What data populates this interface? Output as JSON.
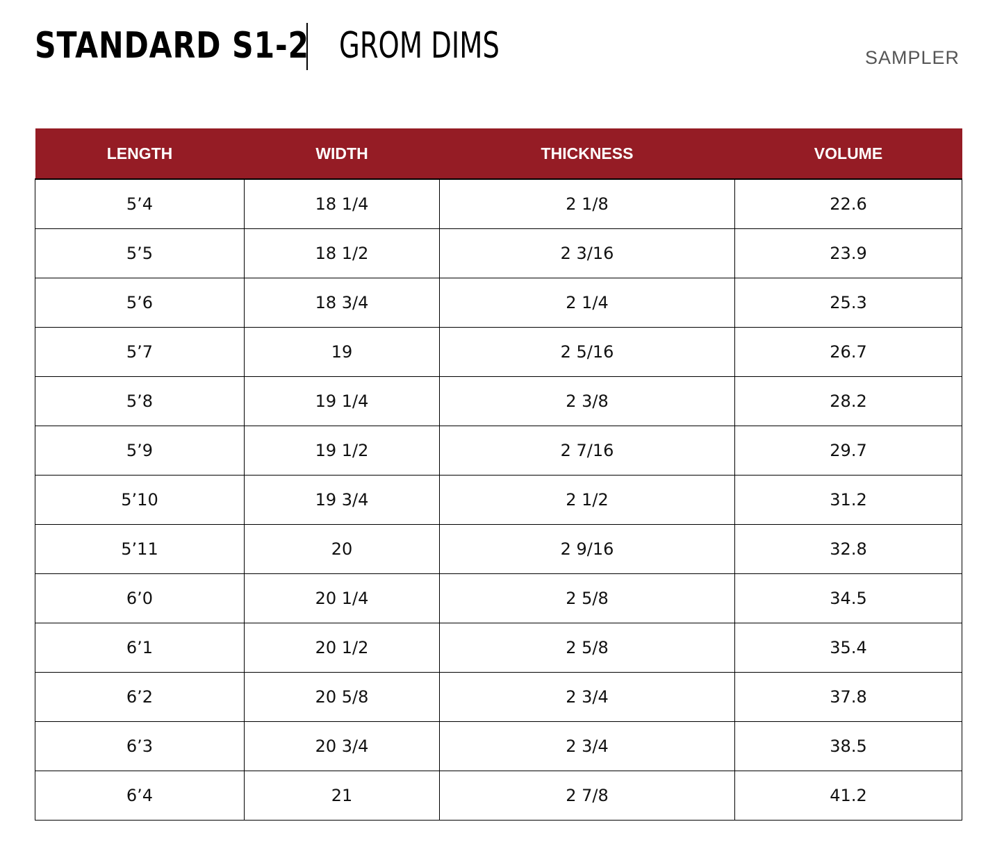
{
  "header": {
    "title": "STANDARD S1-2",
    "subtitle": "GROM DIMS",
    "tag": "SAMPLER"
  },
  "table": {
    "columns": [
      "LENGTH",
      "WIDTH",
      "THICKNESS",
      "VOLUME"
    ],
    "rows": [
      [
        "5’4",
        "18 1/4",
        "2 1/8",
        "22.6"
      ],
      [
        "5’5",
        "18 1/2",
        "2 3/16",
        "23.9"
      ],
      [
        "5’6",
        "18 3/4",
        "2 1/4",
        "25.3"
      ],
      [
        "5’7",
        "19",
        "2 5/16",
        "26.7"
      ],
      [
        "5’8",
        "19 1/4",
        "2 3/8",
        "28.2"
      ],
      [
        "5’9",
        "19 1/2",
        "2 7/16",
        "29.7"
      ],
      [
        "5’10",
        "19 3/4",
        "2 1/2",
        "31.2"
      ],
      [
        "5’11",
        "20",
        "2 9/16",
        "32.8"
      ],
      [
        "6’0",
        "20 1/4",
        "2 5/8",
        "34.5"
      ],
      [
        "6’1",
        "20 1/2",
        "2 5/8",
        "35.4"
      ],
      [
        "6’2",
        "20 5/8",
        "2 3/4",
        "37.8"
      ],
      [
        "6’3",
        "20 3/4",
        "2 3/4",
        "38.5"
      ],
      [
        "6’4",
        "21",
        "2 7/8",
        "41.2"
      ]
    ]
  },
  "colors": {
    "header_background": "#951c25",
    "header_text": "#ffffff",
    "tag_text": "#555555"
  }
}
